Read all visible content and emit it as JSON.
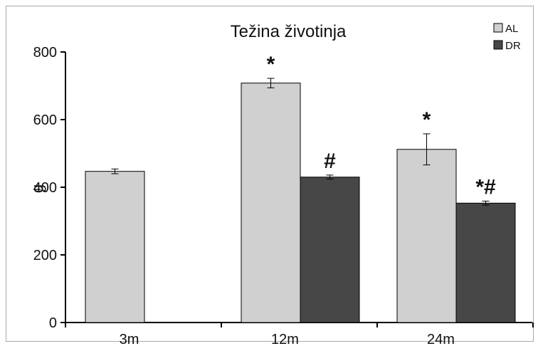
{
  "chart_data": {
    "type": "bar",
    "title": "Težina životinja",
    "ylabel": "g",
    "xlabel": "",
    "ylim": [
      0,
      800
    ],
    "yticks": [
      0,
      200,
      400,
      600,
      800
    ],
    "categories": [
      "3m",
      "12m",
      "24m"
    ],
    "series": [
      {
        "name": "AL",
        "color": "#d0d0d0",
        "values": [
          447,
          708,
          512
        ],
        "errors": [
          7,
          14,
          46
        ]
      },
      {
        "name": "DR",
        "color": "#474747",
        "values": [
          null,
          430,
          353
        ],
        "errors": [
          null,
          6,
          6
        ]
      }
    ],
    "annotations": [
      {
        "category": "12m",
        "series": "AL",
        "text": "*"
      },
      {
        "category": "12m",
        "series": "DR",
        "text": "#"
      },
      {
        "category": "24m",
        "series": "AL",
        "text": "*"
      },
      {
        "category": "24m",
        "series": "DR",
        "text": "*#"
      }
    ],
    "legend_position": "top-right",
    "grid": false
  }
}
